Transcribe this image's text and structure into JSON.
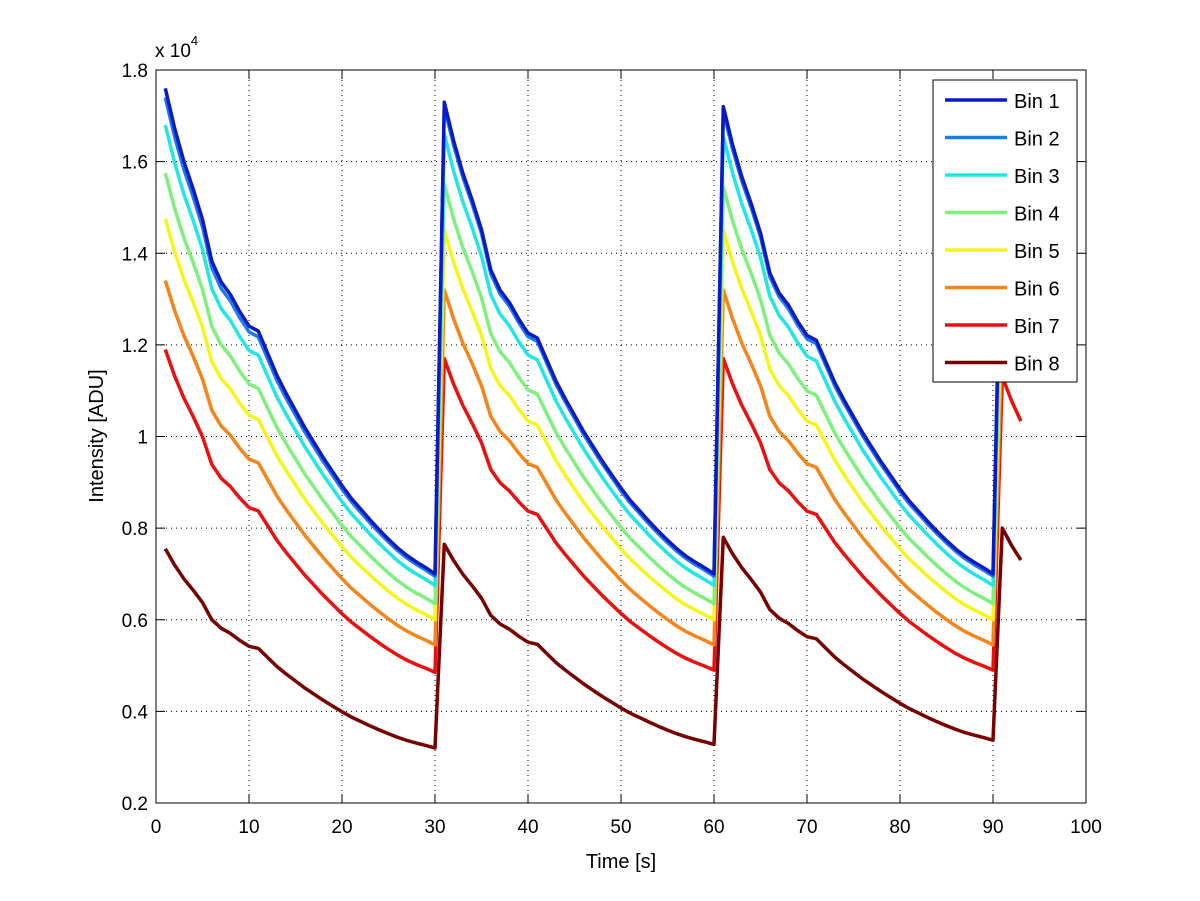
{
  "chart_data": {
    "type": "line",
    "title": "",
    "xlabel": "Time [s]",
    "ylabel": "Intensity [ADU]",
    "y_multiplier_label": "x 10",
    "y_multiplier_exponent": "4",
    "xlim": [
      0,
      100
    ],
    "ylim": [
      0.2,
      1.8
    ],
    "x_ticks": [
      0,
      10,
      20,
      30,
      40,
      50,
      60,
      70,
      80,
      90,
      100
    ],
    "x_tick_labels": [
      "0",
      "10",
      "20",
      "30",
      "40",
      "50",
      "60",
      "70",
      "80",
      "90",
      "100"
    ],
    "y_ticks": [
      0.2,
      0.4,
      0.6,
      0.8,
      1.0,
      1.2,
      1.4,
      1.6,
      1.8
    ],
    "y_tick_labels": [
      "0.2",
      "0.4",
      "0.6",
      "0.8",
      "1",
      "1.2",
      "1.4",
      "1.6",
      "1.8"
    ],
    "grid": true,
    "legend_position": "top-right",
    "x": [
      1,
      2,
      3,
      4,
      5,
      6,
      7,
      8,
      9,
      10,
      11,
      12,
      13,
      14,
      15,
      16,
      17,
      18,
      19,
      20,
      21,
      22,
      23,
      24,
      25,
      26,
      27,
      28,
      29,
      30,
      31,
      32,
      33,
      34,
      35,
      36,
      37,
      38,
      39,
      40,
      41,
      42,
      43,
      44,
      45,
      46,
      47,
      48,
      49,
      50,
      51,
      52,
      53,
      54,
      55,
      56,
      57,
      58,
      59,
      60,
      61,
      62,
      63,
      64,
      65,
      66,
      67,
      68,
      69,
      70,
      71,
      72,
      73,
      74,
      75,
      76,
      77,
      78,
      79,
      80,
      81,
      82,
      83,
      84,
      85,
      86,
      87,
      88,
      89,
      90,
      91,
      92,
      93
    ],
    "series": [
      {
        "name": "Bin 1",
        "color": "#0a1ac8",
        "start": 1.76,
        "end": 0.7,
        "peaks": [
          1.76,
          1.73,
          1.72,
          1.62
        ],
        "lows": [
          0.7,
          0.7,
          0.7
        ]
      },
      {
        "name": "Bin 2",
        "color": "#1a7ee8",
        "start": 1.74,
        "end": 0.695,
        "peaks": [
          1.74,
          1.72,
          1.71,
          1.6
        ],
        "lows": [
          0.695,
          0.695,
          0.695
        ]
      },
      {
        "name": "Bin 3",
        "color": "#22e6e6",
        "start": 1.68,
        "end": 0.675,
        "peaks": [
          1.68,
          1.66,
          1.655,
          1.55
        ],
        "lows": [
          0.675,
          0.675,
          0.675
        ]
      },
      {
        "name": "Bin 4",
        "color": "#7ef07e",
        "start": 1.575,
        "end": 0.635,
        "peaks": [
          1.575,
          1.55,
          1.545,
          1.45
        ],
        "lows": [
          0.635,
          0.635,
          0.635
        ]
      },
      {
        "name": "Bin 5",
        "color": "#f5f51a",
        "start": 1.475,
        "end": 0.6,
        "peaks": [
          1.475,
          1.45,
          1.45,
          1.36
        ],
        "lows": [
          0.6,
          0.6,
          0.6
        ]
      },
      {
        "name": "Bin 6",
        "color": "#f5841a",
        "start": 1.34,
        "end": 0.545,
        "peaks": [
          1.34,
          1.32,
          1.32,
          1.24
        ],
        "lows": [
          0.545,
          0.545,
          0.545
        ]
      },
      {
        "name": "Bin 7",
        "color": "#ea1010",
        "start": 1.19,
        "end": 0.485,
        "peaks": [
          1.19,
          1.17,
          1.17,
          1.13
        ],
        "lows": [
          0.485,
          0.49,
          0.49
        ]
      },
      {
        "name": "Bin 8",
        "color": "#780000",
        "start": 0.755,
        "end": 0.32,
        "peaks": [
          0.755,
          0.765,
          0.78,
          0.8
        ],
        "lows": [
          0.32,
          0.328,
          0.337
        ]
      }
    ],
    "shape_profile": [
      1.0,
      0.937,
      0.884,
      0.84,
      0.792,
      0.726,
      0.693,
      0.673,
      0.646,
      0.623,
      0.615,
      0.58,
      0.545,
      0.516,
      0.489,
      0.462,
      0.438,
      0.414,
      0.392,
      0.37,
      0.35,
      0.333,
      0.316,
      0.3,
      0.285,
      0.271,
      0.259,
      0.249,
      0.24,
      0.23
    ]
  },
  "legend": {
    "items": [
      "Bin 1",
      "Bin 2",
      "Bin 3",
      "Bin 4",
      "Bin 5",
      "Bin 6",
      "Bin 7",
      "Bin 8"
    ]
  }
}
